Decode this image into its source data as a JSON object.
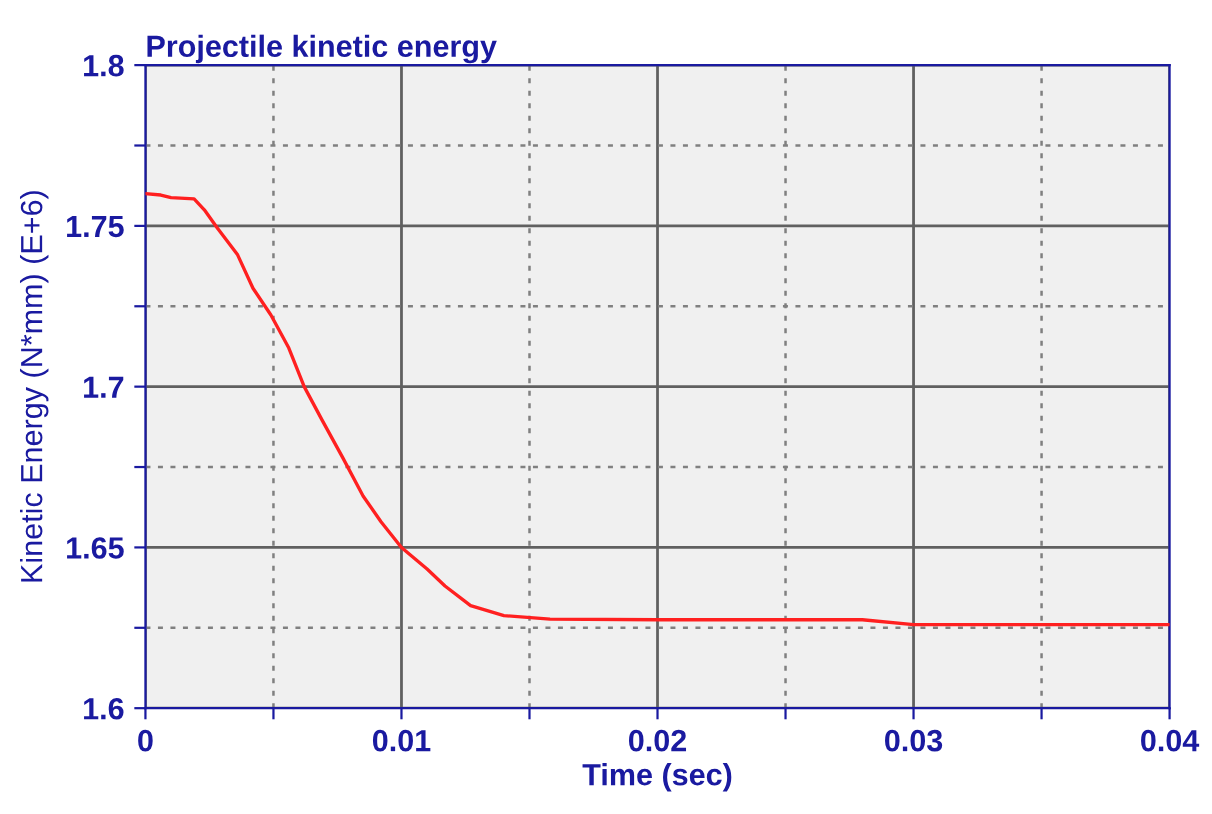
{
  "chart_data": {
    "type": "line",
    "title": "Projectile kinetic energy",
    "xlabel": "Time (sec)",
    "ylabel": "Kinetic Energy (N*mm) (E+6)",
    "series": [
      {
        "color": "#ff2020",
        "x": [
          0,
          0.0006,
          0.001,
          0.0019,
          0.0023,
          0.0028,
          0.0036,
          0.0042,
          0.0049,
          0.0056,
          0.0062,
          0.0069,
          0.0077,
          0.0085,
          0.0092,
          0.01,
          0.011,
          0.0117,
          0.0127,
          0.014,
          0.0158,
          0.02,
          0.028,
          0.03,
          0.04
        ],
        "values": [
          1.76,
          1.7596,
          1.7588,
          1.7584,
          1.755,
          1.7494,
          1.741,
          1.7306,
          1.7223,
          1.712,
          1.7,
          1.6896,
          1.678,
          1.666,
          1.658,
          1.65,
          1.6433,
          1.638,
          1.6319,
          1.6288,
          1.6277,
          1.6275,
          1.6275,
          1.626,
          1.626
        ]
      }
    ],
    "xlim": [
      0,
      0.04
    ],
    "ylim": [
      1.6,
      1.8
    ],
    "xticks": [
      0,
      {
        "value": 0.005,
        "label": null
      },
      0.01,
      {
        "value": 0.015,
        "label": null
      },
      0.02,
      {
        "value": 0.025,
        "label": null
      },
      0.03,
      {
        "value": 0.035,
        "label": null
      },
      0.04
    ],
    "yticks": [
      1.6,
      {
        "value": 1.625,
        "label": null
      },
      1.65,
      {
        "value": 1.675,
        "label": null
      },
      1.7,
      {
        "value": 1.725,
        "label": null
      },
      1.75,
      {
        "value": 1.775,
        "label": null
      },
      1.8
    ],
    "grid": true,
    "legend": false,
    "marker": "none",
    "line_style": "solid"
  }
}
